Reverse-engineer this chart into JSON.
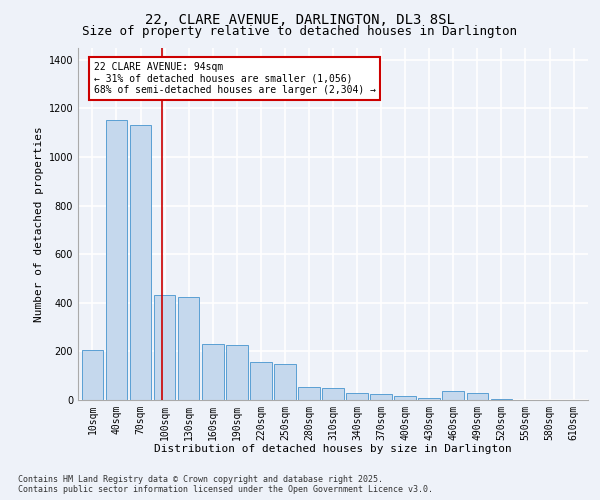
{
  "title": "22, CLARE AVENUE, DARLINGTON, DL3 8SL",
  "subtitle": "Size of property relative to detached houses in Darlington",
  "xlabel": "Distribution of detached houses by size in Darlington",
  "ylabel": "Number of detached properties",
  "categories": [
    "10sqm",
    "40sqm",
    "70sqm",
    "100sqm",
    "130sqm",
    "160sqm",
    "190sqm",
    "220sqm",
    "250sqm",
    "280sqm",
    "310sqm",
    "340sqm",
    "370sqm",
    "400sqm",
    "430sqm",
    "460sqm",
    "490sqm",
    "520sqm",
    "550sqm",
    "580sqm",
    "610sqm"
  ],
  "values": [
    205,
    1150,
    1130,
    430,
    425,
    230,
    225,
    155,
    150,
    55,
    50,
    30,
    25,
    15,
    10,
    35,
    30,
    5,
    0,
    0,
    0
  ],
  "bar_color": "#c5d8ed",
  "bar_edge_color": "#5a9fd4",
  "annotation_line1": "22 CLARE AVENUE: 94sqm",
  "annotation_line2": "← 31% of detached houses are smaller (1,056)",
  "annotation_line3": "68% of semi-detached houses are larger (2,304) →",
  "vline_x": 2.9,
  "vline_color": "#cc0000",
  "annotation_box_color": "#cc0000",
  "annotation_box_fill": "#ffffff",
  "ylim": [
    0,
    1450
  ],
  "footer1": "Contains HM Land Registry data © Crown copyright and database right 2025.",
  "footer2": "Contains public sector information licensed under the Open Government Licence v3.0.",
  "background_color": "#eef2f9",
  "grid_color": "#ffffff",
  "title_fontsize": 10,
  "subtitle_fontsize": 9,
  "axis_label_fontsize": 8,
  "tick_fontsize": 7,
  "annotation_fontsize": 7,
  "footer_fontsize": 6
}
